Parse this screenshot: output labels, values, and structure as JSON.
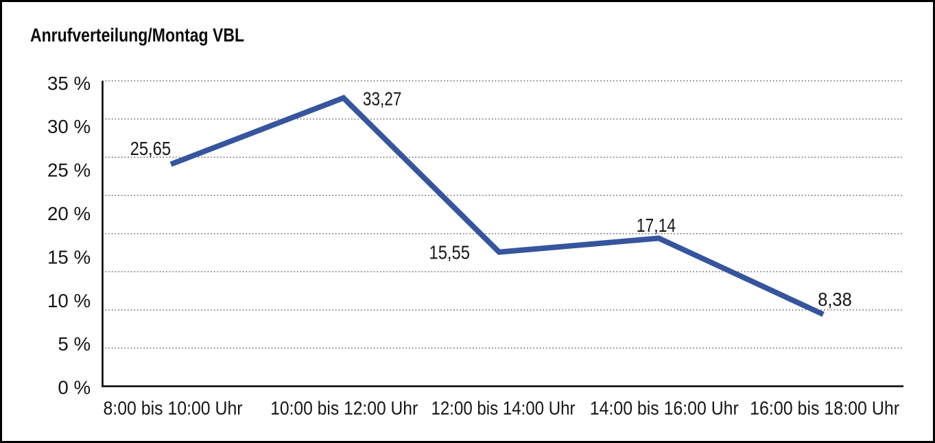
{
  "window": {
    "background_color": "#ffffff",
    "border_color": "#000000"
  },
  "chart_data": {
    "type": "line",
    "title": "Anrufverteilung/Montag VBL",
    "categories": [
      "8:00 bis 10:00 Uhr",
      "10:00 bis 12:00 Uhr",
      "12:00 bis 14:00 Uhr",
      "14:00 bis 16:00 Uhr",
      "16:00 bis 18:00 Uhr"
    ],
    "values": [
      25.65,
      33.27,
      15.55,
      17.14,
      8.38
    ],
    "value_labels": [
      "25,65",
      "33,27",
      "15,55",
      "17,14",
      "8,38"
    ],
    "xlabel": "",
    "ylabel": "",
    "ylim": [
      0,
      35
    ],
    "y_ticks": {
      "values": [
        0,
        5,
        10,
        15,
        20,
        25,
        30,
        35
      ],
      "labels": [
        "0 %",
        "5 %",
        "10 %",
        "15 %",
        "20 %",
        "25 %",
        "30 %",
        "35 %"
      ]
    },
    "grid": "horizontal-dotted",
    "legend": "none",
    "line_color": "#36559E",
    "grid_color": "#4a4a4a",
    "axis_color": "#000000",
    "text_color": "#161616"
  }
}
